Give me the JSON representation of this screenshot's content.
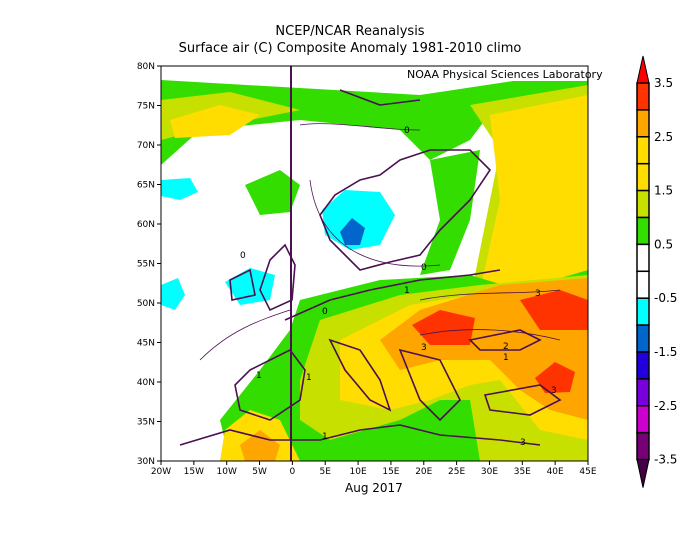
{
  "title": "NCEP/NCAR Reanalysis",
  "subtitle": "Surface air (C) Composite Anomaly 1981-2010 climo",
  "credit": "NOAA Physical Sciences Laboratory",
  "date_label": "Aug 2017",
  "chart_data": {
    "type": "heatmap",
    "variable": "Surface air temperature anomaly (C)",
    "x_ticks": [
      "20W",
      "15W",
      "10W",
      "5W",
      "0",
      "5E",
      "10E",
      "15E",
      "20E",
      "25E",
      "30E",
      "35E",
      "40E",
      "45E"
    ],
    "y_ticks": [
      "80N",
      "75N",
      "70N",
      "65N",
      "60N",
      "55N",
      "50N",
      "45N",
      "40N",
      "35N",
      "30N"
    ],
    "lon_range": [
      -20,
      45
    ],
    "lat_range": [
      30,
      80
    ],
    "contour_labels": [
      "0",
      "0",
      "0",
      "0",
      "1",
      "1",
      "1",
      "1",
      "1",
      "2",
      "3",
      "3",
      "3",
      "3"
    ],
    "colorbar": {
      "labels": [
        "3.5",
        "2.5",
        "1.5",
        "0.5",
        "-0.5",
        "-1.5",
        "-2.5",
        "-3.5"
      ],
      "levels": [
        3.5,
        3,
        2.5,
        2,
        1.5,
        1,
        0.5,
        0,
        -0.5,
        -1,
        -1.5,
        -2,
        -2.5,
        -3,
        -3.5
      ],
      "colors": [
        "#ff3300",
        "#ffa500",
        "#ffdd00",
        "#ffdd00",
        "#c8e000",
        "#33dd00",
        "#ffffff",
        "#ffffff",
        "#00ffff",
        "#0066cc",
        "#2200dd",
        "#7700dd",
        "#cc00cc",
        "#770077"
      ],
      "over_color": "#ff0000",
      "under_color": "#440044"
    }
  }
}
